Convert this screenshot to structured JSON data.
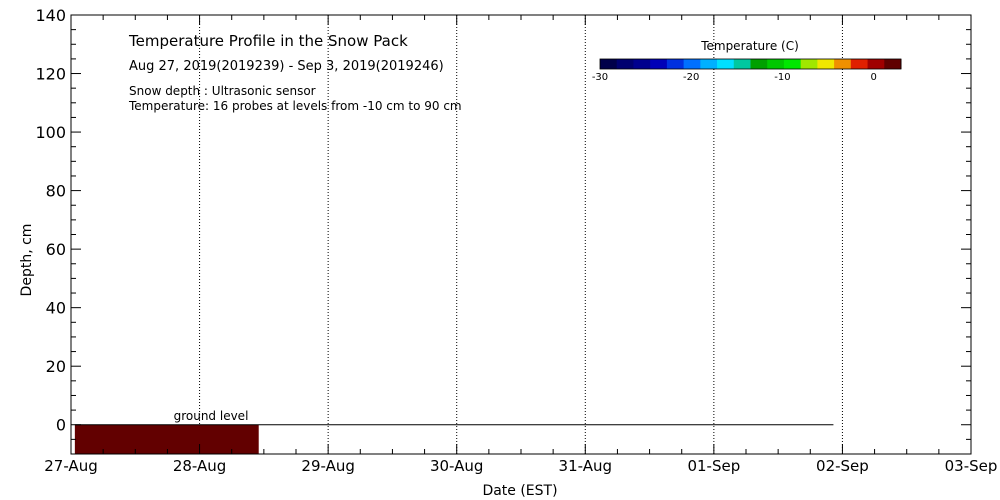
{
  "chart_data": {
    "type": "area",
    "title": "Temperature Profile in the Snow Pack",
    "subtitle": "Aug 27, 2019(2019239) - Sep  3, 2019(2019246)",
    "notes": [
      "Snow depth : Ultrasonic sensor",
      "Temperature: 16 probes at levels from -10 cm to 90 cm"
    ],
    "xlabel": "Date (EST)",
    "ylabel": "Depth, cm",
    "x_ticks": [
      "27-Aug",
      "28-Aug",
      "29-Aug",
      "30-Aug",
      "31-Aug",
      "01-Sep",
      "02-Sep",
      "03-Sep"
    ],
    "xlim_days": [
      0,
      7
    ],
    "ylim": [
      -10,
      140
    ],
    "y_ticks": [
      0,
      20,
      40,
      60,
      80,
      100,
      120,
      140
    ],
    "grid": "dotted, at major date ticks",
    "ground_level": {
      "label": "ground level",
      "depth": 0,
      "x_range_days": [
        0.03,
        5.93
      ]
    },
    "filled_region": {
      "x_range_days": [
        0.03,
        1.46
      ],
      "depth_range": [
        -10,
        0
      ],
      "color": "#620000"
    },
    "colorbar": {
      "title": "Temperature (C)",
      "range": [
        -30,
        3
      ],
      "tick_values": [
        -30,
        -20,
        -10,
        0
      ],
      "tick_labels": [
        "-30",
        "-20",
        "-10",
        "0"
      ],
      "colors": [
        "#00004a",
        "#000070",
        "#00008e",
        "#0000b8",
        "#0030e0",
        "#0070ff",
        "#00b0ff",
        "#00e0ff",
        "#00c8a0",
        "#00a000",
        "#00c800",
        "#00e800",
        "#a0e800",
        "#f0e800",
        "#f09000",
        "#e02000",
        "#a00000",
        "#600000"
      ]
    }
  }
}
